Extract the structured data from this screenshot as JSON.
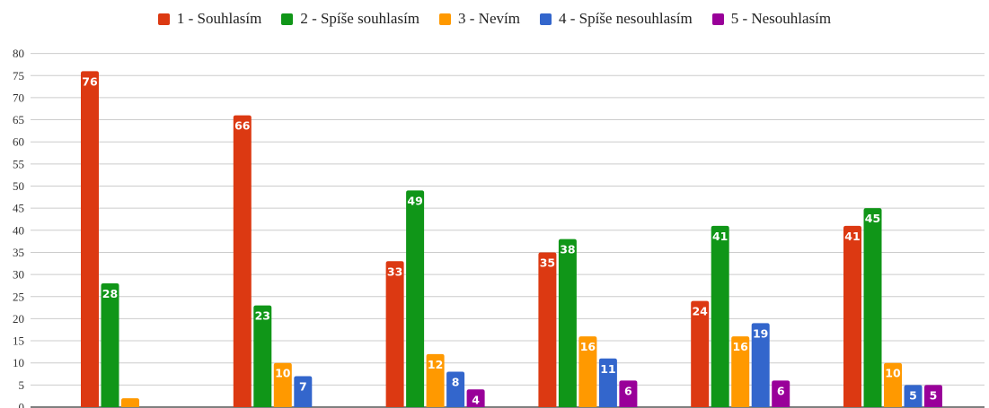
{
  "chart_data": {
    "type": "bar",
    "categories": [
      "",
      "",
      "",
      "",
      "",
      ""
    ],
    "series": [
      {
        "name": "1 - Souhlasím",
        "color": "#dc3912",
        "values": [
          76,
          66,
          33,
          35,
          24,
          41
        ]
      },
      {
        "name": "2 - Spíše souhlasím",
        "color": "#109618",
        "values": [
          28,
          23,
          49,
          38,
          41,
          45
        ]
      },
      {
        "name": "3 - Nevím",
        "color": "#ff9900",
        "values": [
          2,
          10,
          12,
          16,
          16,
          10
        ]
      },
      {
        "name": "4 - Spíše nesouhlasím",
        "color": "#3366cc",
        "values": [
          0,
          7,
          8,
          11,
          19,
          5
        ]
      },
      {
        "name": "5 - Nesouhlasím",
        "color": "#990099",
        "values": [
          0,
          0,
          4,
          6,
          6,
          5
        ]
      }
    ],
    "data_labels": [
      [
        "76",
        "28",
        "",
        "",
        ""
      ],
      [
        "66",
        "23",
        "10",
        "7",
        ""
      ],
      [
        "33",
        "49",
        "12",
        "8",
        "4"
      ],
      [
        "35",
        "38",
        "16",
        "11",
        "6"
      ],
      [
        "24",
        "41",
        "16",
        "19",
        "6"
      ],
      [
        "41",
        "45",
        "10",
        "5",
        "5"
      ]
    ],
    "y_ticks": [
      "0",
      "5",
      "10",
      "15",
      "20",
      "25",
      "30",
      "35",
      "40",
      "45",
      "50",
      "55",
      "60",
      "65",
      "70",
      "75",
      "80"
    ],
    "ylim": [
      0,
      80
    ],
    "title": "",
    "xlabel": "",
    "ylabel": "",
    "grid": true,
    "legend_position": "top"
  }
}
